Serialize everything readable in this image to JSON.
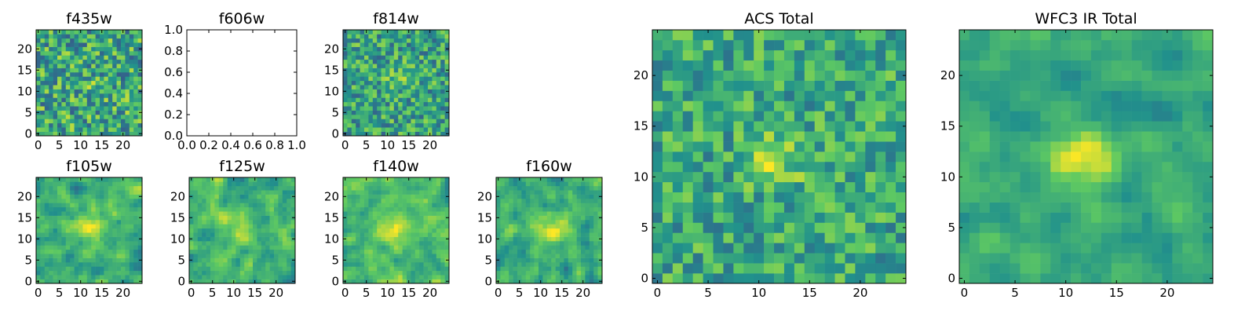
{
  "colormap": {
    "name": "viridis",
    "stops": [
      "#440154",
      "#3b528b",
      "#21918c",
      "#5ec962",
      "#fde725"
    ]
  },
  "chart_data": [
    {
      "type": "heatmap",
      "title": "f435w",
      "grid": false,
      "size": [
        25,
        25
      ],
      "seed": 11,
      "mean": 0.6,
      "noise": 0.3,
      "smooth": 0,
      "source": {
        "x": 12,
        "y": 12,
        "amp": 0.05,
        "sigma": 2.0
      },
      "xticks": [
        0,
        5,
        10,
        15,
        20
      ],
      "yticks": [
        0,
        5,
        10,
        15,
        20
      ],
      "xlim": [
        -0.5,
        24.5
      ],
      "ylim": [
        -0.5,
        24.5
      ]
    },
    {
      "type": "heatmap",
      "title": "f606w",
      "grid": false,
      "empty": true,
      "xticks": [
        "0.0",
        "0.2",
        "0.4",
        "0.6",
        "0.8",
        "1.0"
      ],
      "yticks": [
        "0.0",
        "0.2",
        "0.4",
        "0.6",
        "0.8",
        "1.0"
      ],
      "xlim": [
        0,
        1
      ],
      "ylim": [
        0,
        1
      ]
    },
    {
      "type": "heatmap",
      "title": "f814w",
      "grid": false,
      "size": [
        25,
        25
      ],
      "seed": 23,
      "mean": 0.58,
      "noise": 0.26,
      "smooth": 0,
      "source": {
        "x": 13,
        "y": 13,
        "amp": 0.2,
        "sigma": 2.0
      },
      "xticks": [
        0,
        5,
        10,
        15,
        20
      ],
      "yticks": [
        0,
        5,
        10,
        15,
        20
      ],
      "xlim": [
        -0.5,
        24.5
      ],
      "ylim": [
        -0.5,
        24.5
      ]
    },
    {
      "type": "heatmap",
      "title": "f105w",
      "grid": false,
      "size": [
        25,
        25
      ],
      "seed": 37,
      "mean": 0.62,
      "noise": 0.2,
      "smooth": 1,
      "source": {
        "x": 12,
        "y": 12,
        "amp": 0.3,
        "sigma": 2.5
      },
      "xticks": [
        0,
        5,
        10,
        15,
        20
      ],
      "yticks": [
        0,
        5,
        10,
        15,
        20
      ],
      "xlim": [
        -0.5,
        24.5
      ],
      "ylim": [
        -0.5,
        24.5
      ]
    },
    {
      "type": "heatmap",
      "title": "f125w",
      "grid": false,
      "size": [
        25,
        25
      ],
      "seed": 41,
      "mean": 0.64,
      "noise": 0.2,
      "smooth": 1,
      "source": {
        "x": 12,
        "y": 12,
        "amp": 0.25,
        "sigma": 2.5
      },
      "xticks": [
        0,
        5,
        10,
        15,
        20
      ],
      "yticks": [
        0,
        5,
        10,
        15,
        20
      ],
      "xlim": [
        -0.5,
        24.5
      ],
      "ylim": [
        -0.5,
        24.5
      ]
    },
    {
      "type": "heatmap",
      "title": "f140w",
      "grid": false,
      "size": [
        25,
        25
      ],
      "seed": 53,
      "mean": 0.68,
      "noise": 0.18,
      "smooth": 1,
      "source": {
        "x": 12,
        "y": 12,
        "amp": 0.2,
        "sigma": 3.0
      },
      "xticks": [
        0,
        5,
        10,
        15,
        20
      ],
      "yticks": [
        0,
        5,
        10,
        15,
        20
      ],
      "xlim": [
        -0.5,
        24.5
      ],
      "ylim": [
        -0.5,
        24.5
      ]
    },
    {
      "type": "heatmap",
      "title": "f160w",
      "grid": false,
      "size": [
        25,
        25
      ],
      "seed": 67,
      "mean": 0.62,
      "noise": 0.2,
      "smooth": 1,
      "source": {
        "x": 13,
        "y": 13,
        "amp": 0.3,
        "sigma": 2.5
      },
      "xticks": [
        0,
        5,
        10,
        15,
        20
      ],
      "yticks": [
        0,
        5,
        10,
        15,
        20
      ],
      "xlim": [
        -0.5,
        24.5
      ],
      "ylim": [
        -0.5,
        24.5
      ]
    },
    {
      "type": "heatmap",
      "title": "ACS Total",
      "grid": false,
      "size": [
        25,
        25
      ],
      "seed": 79,
      "mean": 0.6,
      "noise": 0.22,
      "smooth": 0,
      "source": {
        "x": 12,
        "y": 12,
        "amp": 0.25,
        "sigma": 2.0
      },
      "xticks": [
        0,
        5,
        10,
        15,
        20
      ],
      "yticks": [
        0,
        5,
        10,
        15,
        20
      ],
      "xlim": [
        -0.5,
        24.5
      ],
      "ylim": [
        -0.5,
        24.5
      ]
    },
    {
      "type": "heatmap",
      "title": "WFC3 IR Total",
      "grid": false,
      "size": [
        25,
        25
      ],
      "seed": 97,
      "mean": 0.6,
      "noise": 0.14,
      "smooth": 1,
      "source": {
        "x": 12,
        "y": 12,
        "amp": 0.4,
        "sigma": 2.0
      },
      "xticks": [
        0,
        5,
        10,
        15,
        20
      ],
      "yticks": [
        0,
        5,
        10,
        15,
        20
      ],
      "xlim": [
        -0.5,
        24.5
      ],
      "ylim": [
        -0.5,
        24.5
      ]
    }
  ]
}
